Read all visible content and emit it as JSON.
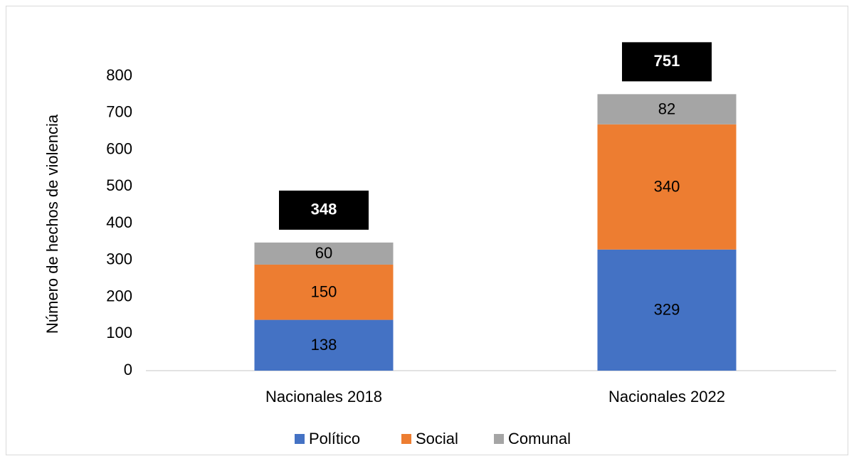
{
  "chart_data": {
    "type": "stacked_bar",
    "y_axis_label": "Número de hechos de violencia",
    "categories": [
      "Nacionales 2018",
      "Nacionales 2022"
    ],
    "series": [
      {
        "name": "Político",
        "color": "#4472c4",
        "values": [
          138,
          329
        ]
      },
      {
        "name": "Social",
        "color": "#ed7d31",
        "values": [
          150,
          340
        ]
      },
      {
        "name": "Comunal",
        "color": "#a5a5a5",
        "values": [
          60,
          82
        ]
      }
    ],
    "totals": [
      348,
      751
    ],
    "ylim": [
      0,
      800
    ],
    "yticks": [
      0,
      100,
      200,
      300,
      400,
      500,
      600,
      700,
      800
    ],
    "grid": false,
    "legend": "bottom"
  }
}
